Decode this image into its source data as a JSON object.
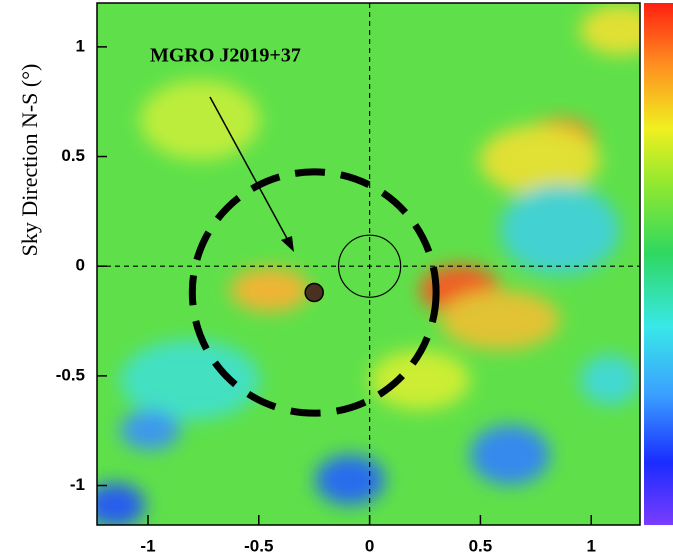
{
  "chart_data": {
    "type": "skymap",
    "ylabel": "Sky Direction N-S (°)",
    "annotation": "MGRO J2019+37",
    "xlim": [
      -1.23,
      1.22
    ],
    "ylim": [
      -1.18,
      1.2
    ],
    "xticks": [
      -1,
      -0.5,
      0,
      0.5,
      1
    ],
    "yticks": [
      -1,
      -0.5,
      0,
      0.5,
      1
    ],
    "source_position": {
      "x": -0.25,
      "y": -0.12
    },
    "extent_radius": 0.55,
    "psf_radius": 0.14
  }
}
